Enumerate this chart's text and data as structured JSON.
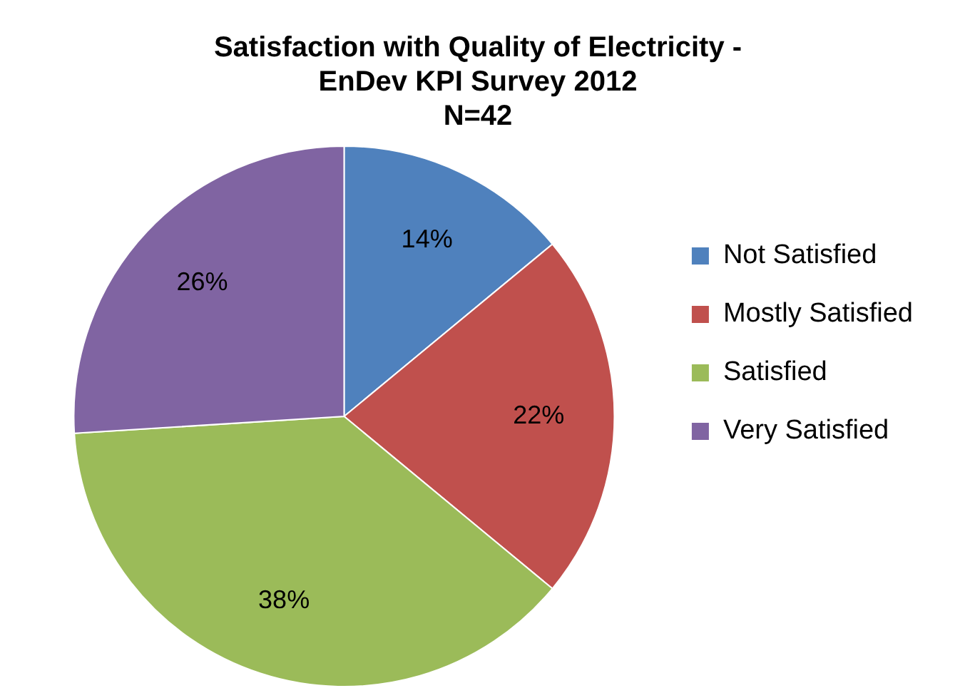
{
  "chart_data": {
    "type": "pie",
    "title": "Satisfaction with Quality of Electricity -\nEnDev KPI Survey 2012\nN=42",
    "categories": [
      "Not Satisfied",
      "Mostly Satisfied",
      "Satisfied",
      "Very Satisfied"
    ],
    "values": [
      14,
      22,
      38,
      26
    ],
    "colors": [
      "#4f81bd",
      "#c0504d",
      "#9bbb59",
      "#8064a2"
    ],
    "value_labels": [
      "14%",
      "22%",
      "38%",
      "26%"
    ],
    "legend": "right"
  }
}
